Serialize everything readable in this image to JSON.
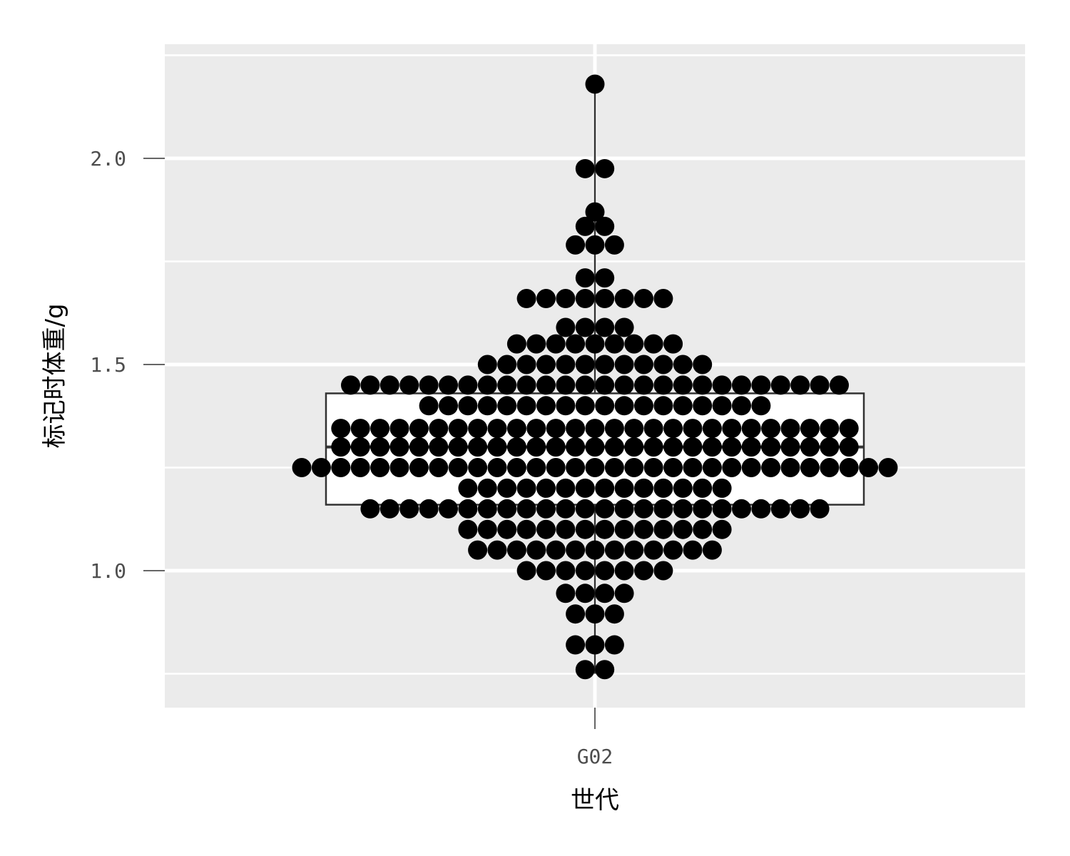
{
  "chart_data": {
    "type": "dotplot-boxplot",
    "xlabel": "世代",
    "ylabel": "标记时体重/g",
    "categories": [
      "G02"
    ],
    "yticks": [
      1.0,
      1.5,
      2.0
    ],
    "ytick_labels": [
      "1.0",
      "1.5",
      "2.0"
    ],
    "ylim": [
      0.67,
      2.28
    ],
    "grid": true,
    "box": {
      "category": "G02",
      "q1": 1.16,
      "median": 1.3,
      "q3": 1.43,
      "whisker_low": 0.75,
      "whisker_high": 2.18
    },
    "dot_rows": [
      {
        "y": 2.18,
        "count": 1
      },
      {
        "y": 1.975,
        "count": 2
      },
      {
        "y": 1.87,
        "count": 1
      },
      {
        "y": 1.835,
        "count": 2
      },
      {
        "y": 1.79,
        "count": 3
      },
      {
        "y": 1.71,
        "count": 2
      },
      {
        "y": 1.66,
        "count": 8
      },
      {
        "y": 1.59,
        "count": 4
      },
      {
        "y": 1.55,
        "count": 9
      },
      {
        "y": 1.5,
        "count": 12
      },
      {
        "y": 1.45,
        "count": 26
      },
      {
        "y": 1.4,
        "count": 18
      },
      {
        "y": 1.345,
        "count": 27
      },
      {
        "y": 1.3,
        "count": 27
      },
      {
        "y": 1.25,
        "count": 31
      },
      {
        "y": 1.2,
        "count": 14
      },
      {
        "y": 1.15,
        "count": 24
      },
      {
        "y": 1.1,
        "count": 14
      },
      {
        "y": 1.05,
        "count": 13
      },
      {
        "y": 1.0,
        "count": 8
      },
      {
        "y": 0.945,
        "count": 4
      },
      {
        "y": 0.895,
        "count": 3
      },
      {
        "y": 0.82,
        "count": 3
      },
      {
        "y": 0.76,
        "count": 2
      }
    ]
  }
}
